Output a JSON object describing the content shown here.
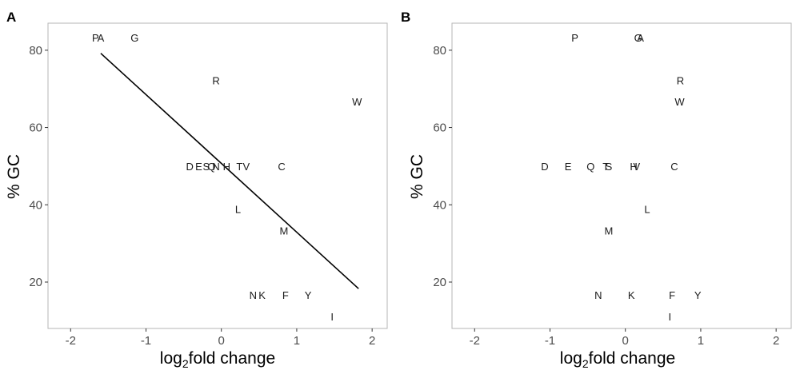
{
  "chart_data": [
    {
      "type": "scatter",
      "panel_label": "A",
      "xlabel_main": "log",
      "xlabel_sub": "2",
      "xlabel_rest": "fold change",
      "ylabel": "% GC",
      "xlim": [
        -2.3,
        2.2
      ],
      "ylim": [
        8,
        87
      ],
      "xticks": [
        -2,
        -1,
        0,
        1,
        2
      ],
      "xtick_labels": [
        "-2",
        "-1",
        "0",
        "1",
        "2"
      ],
      "yticks": [
        20,
        40,
        60,
        80
      ],
      "ytick_labels": [
        "20",
        "40",
        "60",
        "80"
      ],
      "grid": false,
      "points": [
        {
          "label": "P",
          "x": -1.67,
          "y": 83.3
        },
        {
          "label": "A",
          "x": -1.6,
          "y": 83.3
        },
        {
          "label": "G",
          "x": -1.15,
          "y": 83.3
        },
        {
          "label": "R",
          "x": -0.07,
          "y": 72.2
        },
        {
          "label": "W",
          "x": 1.8,
          "y": 66.7
        },
        {
          "label": "D",
          "x": -0.42,
          "y": 50
        },
        {
          "label": "E",
          "x": -0.3,
          "y": 50
        },
        {
          "label": "S",
          "x": -0.2,
          "y": 50
        },
        {
          "label": "Q",
          "x": -0.13,
          "y": 50
        },
        {
          "label": "N",
          "x": -0.07,
          "y": 50
        },
        {
          "label": "H",
          "x": 0.07,
          "y": 50
        },
        {
          "label": "T",
          "x": 0.24,
          "y": 50
        },
        {
          "label": "V",
          "x": 0.33,
          "y": 50
        },
        {
          "label": "C",
          "x": 0.8,
          "y": 50
        },
        {
          "label": "L",
          "x": 0.22,
          "y": 38.9
        },
        {
          "label": "M",
          "x": 0.83,
          "y": 33.3
        },
        {
          "label": "N",
          "x": 0.42,
          "y": 16.7
        },
        {
          "label": "K",
          "x": 0.54,
          "y": 16.7
        },
        {
          "label": "F",
          "x": 0.85,
          "y": 16.7
        },
        {
          "label": "Y",
          "x": 1.15,
          "y": 16.7
        },
        {
          "label": "I",
          "x": 1.47,
          "y": 11.1
        }
      ],
      "fit_line": {
        "x": [
          -1.6,
          1.82
        ],
        "y": [
          79.2,
          18.3
        ]
      }
    },
    {
      "type": "scatter",
      "panel_label": "B",
      "xlabel_main": "log",
      "xlabel_sub": "2",
      "xlabel_rest": "fold change",
      "ylabel": "% GC",
      "xlim": [
        -2.3,
        2.2
      ],
      "ylim": [
        8,
        87
      ],
      "xticks": [
        -2,
        -1,
        0,
        1,
        2
      ],
      "xtick_labels": [
        "-2",
        "-1",
        "0",
        "1",
        "2"
      ],
      "yticks": [
        20,
        40,
        60,
        80
      ],
      "ytick_labels": [
        "20",
        "40",
        "60",
        "80"
      ],
      "grid": false,
      "points": [
        {
          "label": "P",
          "x": -0.67,
          "y": 83.3
        },
        {
          "label": "G",
          "x": 0.17,
          "y": 83.3
        },
        {
          "label": "A",
          "x": 0.2,
          "y": 83.3
        },
        {
          "label": "R",
          "x": 0.73,
          "y": 72.2
        },
        {
          "label": "W",
          "x": 0.72,
          "y": 66.7
        },
        {
          "label": "D",
          "x": -1.07,
          "y": 50
        },
        {
          "label": "E",
          "x": -0.76,
          "y": 50
        },
        {
          "label": "Q",
          "x": -0.46,
          "y": 50
        },
        {
          "label": "T",
          "x": -0.26,
          "y": 50
        },
        {
          "label": "S",
          "x": -0.22,
          "y": 50
        },
        {
          "label": "H",
          "x": 0.11,
          "y": 50
        },
        {
          "label": "V",
          "x": 0.15,
          "y": 50
        },
        {
          "label": "C",
          "x": 0.65,
          "y": 50
        },
        {
          "label": "L",
          "x": 0.29,
          "y": 38.9
        },
        {
          "label": "M",
          "x": -0.22,
          "y": 33.3
        },
        {
          "label": "N",
          "x": -0.36,
          "y": 16.7
        },
        {
          "label": "K",
          "x": 0.08,
          "y": 16.7
        },
        {
          "label": "F",
          "x": 0.62,
          "y": 16.7
        },
        {
          "label": "Y",
          "x": 0.96,
          "y": 16.7
        },
        {
          "label": "I",
          "x": 0.59,
          "y": 11.1
        }
      ]
    }
  ]
}
